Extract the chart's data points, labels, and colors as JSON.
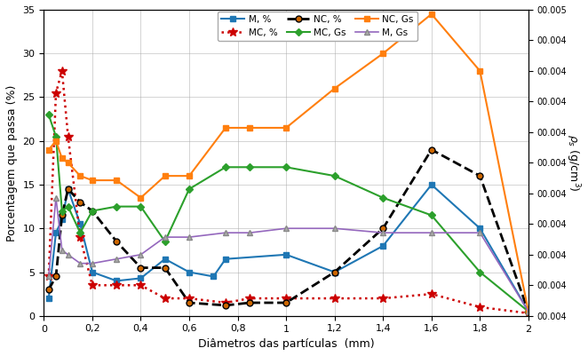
{
  "title": "",
  "xlabel": "Diâmetros das partículas  (mm)",
  "ylabel_left": "Porcentagem que passa (%)",
  "ylabel_right": "ρs (g/cm³)",
  "xlim": [
    0,
    2.0
  ],
  "ylim_left": [
    0,
    35
  ],
  "background_color": "#ffffff",
  "grid": true,
  "M_pct": {
    "x": [
      0.02,
      0.05,
      0.075,
      0.1,
      0.15,
      0.2,
      0.3,
      0.4,
      0.5,
      0.6,
      0.7,
      0.75,
      1.0,
      1.2,
      1.4,
      1.6,
      1.8,
      2.0
    ],
    "y": [
      2.0,
      9.5,
      11.0,
      14.5,
      10.5,
      5.0,
      4.0,
      4.3,
      6.5,
      5.0,
      4.5,
      6.5,
      7.0,
      5.0,
      8.0,
      15.0,
      10.0,
      0.5
    ],
    "color": "#1f77b4",
    "linestyle": "-",
    "marker": "s",
    "label": "M, %",
    "linewidth": 1.5,
    "markersize": 4,
    "markerfacecolor": "#1f77b4",
    "markeredgecolor": "#1f77b4"
  },
  "MC_pct": {
    "x": [
      0.02,
      0.05,
      0.075,
      0.1,
      0.15,
      0.2,
      0.3,
      0.4,
      0.5,
      0.6,
      0.75,
      0.85,
      1.0,
      1.2,
      1.4,
      1.6,
      1.8,
      2.0
    ],
    "y": [
      4.5,
      25.5,
      28.0,
      20.5,
      9.0,
      3.5,
      3.5,
      3.5,
      2.0,
      2.0,
      1.5,
      2.0,
      2.0,
      2.0,
      2.0,
      2.5,
      1.0,
      0.3
    ],
    "color": "#cc0000",
    "linestyle": ":",
    "marker": "*",
    "label": "MC, %",
    "linewidth": 1.8,
    "markersize": 7,
    "markerfacecolor": "#cc0000",
    "markeredgecolor": "#cc0000"
  },
  "NC_pct": {
    "x": [
      0.02,
      0.05,
      0.075,
      0.1,
      0.15,
      0.2,
      0.3,
      0.4,
      0.5,
      0.6,
      0.75,
      0.85,
      1.0,
      1.2,
      1.4,
      1.6,
      1.8,
      2.0
    ],
    "y": [
      3.0,
      4.5,
      11.5,
      14.5,
      13.0,
      12.0,
      8.5,
      5.5,
      5.5,
      1.5,
      1.2,
      1.5,
      1.5,
      5.0,
      10.0,
      19.0,
      16.0,
      0.5
    ],
    "color": "#000000",
    "linestyle": "--",
    "marker": "o",
    "label": "NC, %",
    "linewidth": 2.0,
    "markersize": 5,
    "markerfacecolor": "#cc6600",
    "markeredgecolor": "#000000"
  },
  "MC_Gs": {
    "x": [
      0.02,
      0.05,
      0.075,
      0.1,
      0.15,
      0.2,
      0.3,
      0.4,
      0.5,
      0.6,
      0.75,
      0.85,
      1.0,
      1.2,
      1.4,
      1.6,
      1.8,
      2.0
    ],
    "y": [
      23.0,
      20.5,
      12.0,
      12.5,
      9.5,
      12.0,
      12.5,
      12.5,
      8.5,
      14.5,
      17.0,
      17.0,
      17.0,
      16.0,
      13.5,
      11.5,
      5.0,
      0.5
    ],
    "color": "#2ca02c",
    "linestyle": "-",
    "marker": "D",
    "label": "MC, Gs",
    "linewidth": 1.5,
    "markersize": 4,
    "markerfacecolor": "#2ca02c",
    "markeredgecolor": "#2ca02c"
  },
  "NC_Gs": {
    "x": [
      0.02,
      0.05,
      0.075,
      0.1,
      0.15,
      0.2,
      0.3,
      0.4,
      0.5,
      0.6,
      0.75,
      0.85,
      1.0,
      1.2,
      1.4,
      1.6,
      1.8,
      2.0
    ],
    "y": [
      19.0,
      20.0,
      18.0,
      17.5,
      16.0,
      15.5,
      15.5,
      13.5,
      16.0,
      16.0,
      21.5,
      21.5,
      21.5,
      26.0,
      30.0,
      34.5,
      28.0,
      0.5
    ],
    "color": "#ff7f0e",
    "linestyle": "-",
    "marker": "s",
    "label": "NC, Gs",
    "linewidth": 1.5,
    "markersize": 4,
    "markerfacecolor": "#ff7f0e",
    "markeredgecolor": "#ff7f0e"
  },
  "M_Gs": {
    "x": [
      0.02,
      0.05,
      0.075,
      0.1,
      0.15,
      0.2,
      0.3,
      0.4,
      0.5,
      0.6,
      0.75,
      0.85,
      1.0,
      1.2,
      1.4,
      1.6,
      1.8,
      2.0
    ],
    "y": [
      4.5,
      13.5,
      7.5,
      7.0,
      6.0,
      6.0,
      6.5,
      7.0,
      9.0,
      9.0,
      9.5,
      9.5,
      10.0,
      10.0,
      9.5,
      9.5,
      9.5,
      0.5
    ],
    "color": "#9467bd",
    "linestyle": "-",
    "marker": "^",
    "label": "M, Gs",
    "linewidth": 1.2,
    "markersize": 4,
    "markerfacecolor": "#aaaaaa",
    "markeredgecolor": "#888888"
  },
  "right_tick_labels": [
    "00.005",
    "00.004",
    "00.004",
    "00.004",
    "00.004",
    "00.004",
    "00.004",
    "00.004",
    "00.004",
    "00.004",
    "00.004"
  ],
  "right_tick_positions": [
    35,
    31.5,
    28,
    24.5,
    21,
    17.5,
    14,
    10.5,
    7,
    3.5,
    0
  ],
  "xtick_labels": [
    "0",
    "0,2",
    "0,4",
    "0,6",
    "0,8",
    "1",
    "1,2",
    "1,4",
    "1,6",
    "1,8",
    "2"
  ],
  "xtick_positions": [
    0,
    0.2,
    0.4,
    0.6,
    0.8,
    1.0,
    1.2,
    1.4,
    1.6,
    1.8,
    2.0
  ],
  "ytick_labels": [
    "0",
    "5",
    "10",
    "15",
    "20",
    "25",
    "30",
    "35"
  ],
  "ytick_positions": [
    0,
    5,
    10,
    15,
    20,
    25,
    30,
    35
  ]
}
